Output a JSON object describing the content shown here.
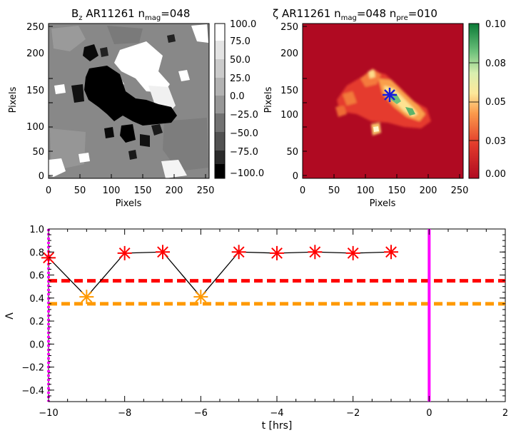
{
  "chart_data": [
    {
      "type": "heatmap",
      "title": {
        "main": "B",
        "sub": "z",
        "rest": " AR11261  n",
        "nsub": "mag",
        "tail": "=048"
      },
      "xlabel": "Pixels",
      "ylabel": "Pixels",
      "xlim": [
        0,
        256
      ],
      "ylim": [
        0,
        256
      ],
      "xticks": [
        "0",
        "50",
        "100",
        "150",
        "200",
        "250"
      ],
      "yticks": [
        "0",
        "50",
        "100",
        "150",
        "200",
        "250"
      ],
      "colorbar": {
        "range": [
          -100,
          100
        ],
        "ticks": [
          "100.0",
          "75.0",
          "50.0",
          "25.0",
          "0.0",
          "−25.0",
          "−50.0",
          "−75.0",
          "−100.0"
        ],
        "colormap": "grayscale"
      },
      "colors": {
        "background": "#888888",
        "positive": "#ffffff",
        "negative": "#000000"
      }
    },
    {
      "type": "heatmap",
      "title": {
        "main": "ζ",
        "rest": "  AR11261  n",
        "nsub": "mag",
        "mid": "=048  n",
        "psub": "pre",
        "tail": "=010"
      },
      "xlabel": "Pixels",
      "ylabel": "Pixels",
      "xlim": [
        0,
        256
      ],
      "ylim": [
        0,
        256
      ],
      "xticks": [
        "0",
        "50",
        "100",
        "150",
        "200",
        "250"
      ],
      "yticks": [
        "0",
        "50",
        "100",
        "150",
        "200",
        "250"
      ],
      "colorbar": {
        "range": [
          0,
          0.1
        ],
        "ticks": [
          "0.10",
          "0.08",
          "0.05",
          "0.03",
          "0.00"
        ],
        "colormap": "red-yellow-green"
      },
      "marker": {
        "x": 140,
        "y": 140,
        "color": "#1b1bd8"
      },
      "colors": {
        "background": "#b00a22"
      }
    },
    {
      "type": "scatter",
      "xlabel": "t [hrs]",
      "ylabel": "Λ",
      "xlim": [
        -10,
        2
      ],
      "ylim": [
        -0.5,
        1.0
      ],
      "xticks": [
        "−10",
        "−8",
        "−6",
        "−4",
        "−2",
        "0",
        "2"
      ],
      "yticks": [
        "−0.4",
        "−0.2",
        "0.0",
        "0.2",
        "0.4",
        "0.6",
        "0.8",
        "1.0"
      ],
      "x": [
        -10,
        -9,
        -8,
        -7,
        -6,
        -5,
        -4,
        -3,
        -2,
        -1
      ],
      "y": [
        0.75,
        0.41,
        0.79,
        0.8,
        0.41,
        0.8,
        0.79,
        0.8,
        0.79,
        0.8
      ],
      "colors": [
        "#ff0000",
        "#ff9900",
        "#ff0000",
        "#ff0000",
        "#ff9900",
        "#ff0000",
        "#ff0000",
        "#ff0000",
        "#ff0000",
        "#ff0000"
      ],
      "hlines": [
        {
          "y": 0.55,
          "color": "#ff0000",
          "style": "dashed"
        },
        {
          "y": 0.35,
          "color": "#ff9900",
          "style": "dashed"
        }
      ],
      "vlines": [
        {
          "x": 0,
          "color": "#ff00ff",
          "style": "solid"
        },
        {
          "x": -10,
          "color": "#ff00ff",
          "style": "dotted"
        }
      ],
      "line_color": "#000000"
    }
  ]
}
